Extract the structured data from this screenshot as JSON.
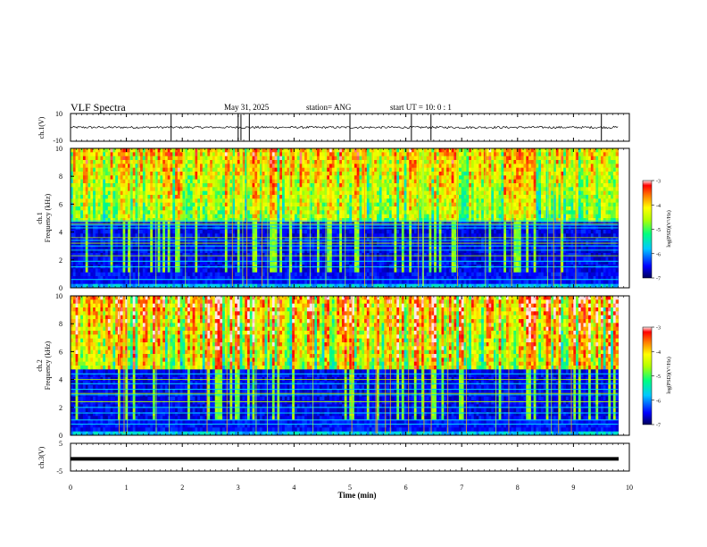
{
  "header": {
    "title": "VLF Spectra",
    "date": "May 31, 2025",
    "station_label": "station= ANG",
    "start_label": "start  UT =   10: 0  : 1"
  },
  "chart_data": [
    {
      "type": "line",
      "name": "ch1-waveform",
      "ylabel": "ch.1(V)",
      "ylim": [
        -10,
        10
      ],
      "yticks": [
        10,
        -10
      ],
      "baseline": 0,
      "spike_times_min": [
        1.8,
        3.0,
        3.05,
        3.2,
        5.0,
        6.1,
        6.45,
        9.5
      ],
      "xlim": [
        0,
        10
      ]
    },
    {
      "type": "heatmap",
      "name": "ch1-spectrogram",
      "ylabel": "Frequency  (kHz)",
      "channel_label": "ch.1",
      "ylim": [
        0,
        10
      ],
      "yticks": [
        0,
        2,
        4,
        6,
        8,
        10
      ],
      "xlim": [
        0,
        9.8
      ],
      "colorbar": {
        "label": "log(PSD)(V²/Hz)",
        "range": [
          -7,
          -3
        ],
        "ticks": [
          -3,
          -4,
          -5,
          -6,
          -7
        ]
      },
      "bright_bands_khz": [
        4.8,
        4.5,
        4.3,
        3.4,
        3.0,
        2.7,
        1.9,
        1.5,
        0.6
      ],
      "tone_lines_khz": [
        4.6,
        3.6,
        3.2,
        2.3
      ]
    },
    {
      "type": "heatmap",
      "name": "ch2-spectrogram",
      "ylabel": "Frequency  (kHz)",
      "channel_label": "ch.2",
      "ylim": [
        0,
        10
      ],
      "yticks": [
        0,
        2,
        4,
        6,
        8,
        10
      ],
      "xlim": [
        0,
        9.8
      ],
      "colorbar": {
        "label": "log(PSD)(V²/Hz)",
        "range": [
          -7,
          -3
        ],
        "ticks": [
          -3,
          -4,
          -5,
          -6,
          -7
        ]
      },
      "bright_bands_khz": [
        4.4,
        3.7,
        3.3,
        2.9,
        2.0,
        1.6,
        1.1,
        0.8
      ],
      "tone_lines_khz": [
        4.0,
        3.0,
        2.4
      ]
    },
    {
      "type": "line",
      "name": "ch3-waveform",
      "ylabel": "ch.3(V)",
      "ylim": [
        -5,
        5
      ],
      "yticks": [
        5,
        0,
        -5
      ],
      "level_v": -0.6,
      "xlim": [
        0,
        10
      ]
    }
  ],
  "xaxis": {
    "label": "Time  (min)",
    "ticks": [
      0,
      1,
      2,
      3,
      4,
      5,
      6,
      7,
      8,
      9,
      10
    ],
    "range": [
      0,
      10
    ]
  }
}
